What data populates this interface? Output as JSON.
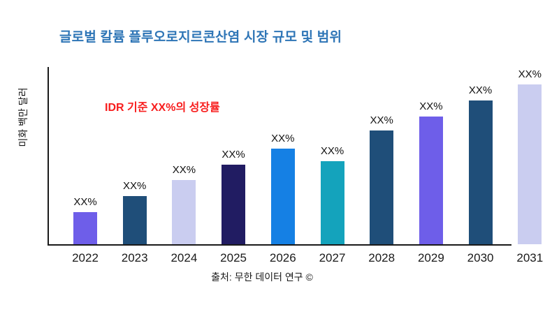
{
  "chart_data": {
    "type": "bar",
    "title": "글로벌 칼륨 플루오로지르콘산염 시장 규모 및 범위",
    "annotation": "IDR 기준 XX%의 성장률",
    "ylabel": "미화 백만 달러",
    "source": "출처: 무한 데이터 연구 ©",
    "bar_label": "XX%",
    "categories": [
      "2022",
      "2023",
      "2024",
      "2025",
      "2026",
      "2027",
      "2028",
      "2029",
      "2030",
      "2031"
    ],
    "values": [
      20,
      30,
      40,
      50,
      60,
      52,
      71,
      80,
      90,
      100
    ],
    "ylim": [
      0,
      100
    ],
    "grid": false,
    "legend": "none",
    "bar_colors": [
      "#6e5ee9",
      "#1f4e79",
      "#cacdf0",
      "#211c62",
      "#1580e4",
      "#14a3bc",
      "#1f4e79",
      "#6e5ee9",
      "#1f4e79",
      "#cacdf0"
    ],
    "colors": {
      "title": "#2e75b6",
      "annotation": "#f81e1e",
      "axis": "#1a1a1a",
      "text": "#111111"
    }
  }
}
